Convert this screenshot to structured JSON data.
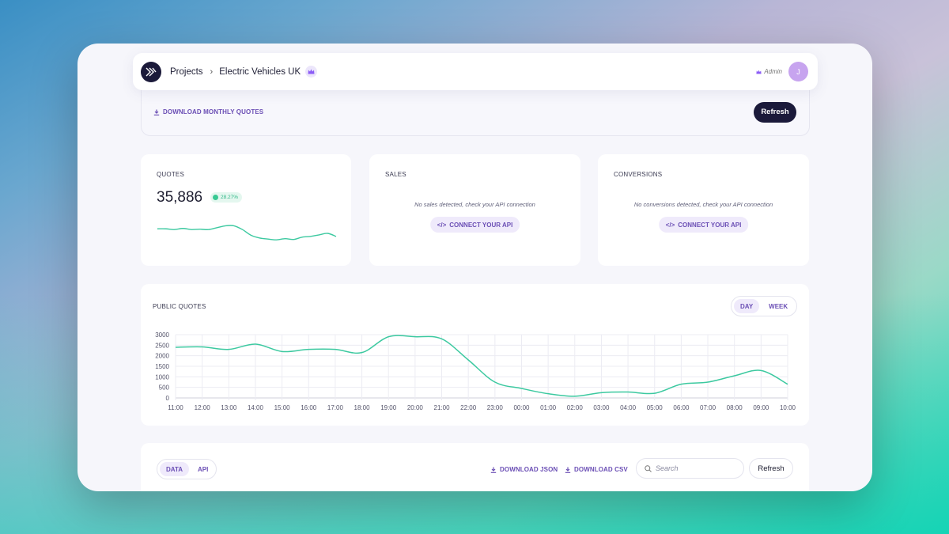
{
  "header": {
    "breadcrumb": [
      "Projects",
      "Electric Vehicles UK"
    ],
    "role": "Admin",
    "avatar_initial": "J"
  },
  "toolbar": {
    "download_monthly": "DOWNLOAD MONTHLY QUOTES",
    "refresh_label": "Refresh"
  },
  "cards": {
    "quotes": {
      "title": "QUOTES",
      "value": "35,886",
      "change": "28.27%",
      "sparkline": [
        0.62,
        0.62,
        0.6,
        0.63,
        0.6,
        0.61,
        0.6,
        0.65,
        0.7,
        0.7,
        0.6,
        0.45,
        0.38,
        0.35,
        0.33,
        0.36,
        0.34,
        0.4,
        0.42,
        0.46,
        0.5,
        0.42
      ]
    },
    "sales": {
      "title": "SALES",
      "message": "No sales detected, check your API connection",
      "action": "CONNECT YOUR API"
    },
    "conversions": {
      "title": "CONVERSIONS",
      "message": "No conversions detected, check your API connection",
      "action": "CONNECT YOUR API"
    }
  },
  "public_quotes": {
    "title": "PUBLIC QUOTES",
    "toggle": [
      "DAY",
      "WEEK"
    ],
    "active_toggle": "DAY"
  },
  "chart_data": {
    "type": "line",
    "title": "PUBLIC QUOTES",
    "x": [
      "11:00",
      "12:00",
      "13:00",
      "14:00",
      "15:00",
      "16:00",
      "17:00",
      "18:00",
      "19:00",
      "20:00",
      "21:00",
      "22:00",
      "23:00",
      "00:00",
      "01:00",
      "02:00",
      "03:00",
      "04:00",
      "05:00",
      "06:00",
      "07:00",
      "08:00",
      "09:00",
      "10:00"
    ],
    "values": [
      2400,
      2420,
      2300,
      2550,
      2200,
      2300,
      2300,
      2150,
      2900,
      2900,
      2800,
      1800,
      750,
      450,
      200,
      80,
      250,
      280,
      220,
      650,
      750,
      1050,
      1300,
      650
    ],
    "ylim": [
      0,
      3000
    ],
    "yticks": [
      0,
      500,
      1000,
      1500,
      2000,
      2500,
      3000
    ],
    "grid": true,
    "color": "#3cc9a0"
  },
  "data_section": {
    "tabs": [
      "DATA",
      "API"
    ],
    "active_tab": "DATA",
    "download_json": "DOWNLOAD JSON",
    "download_csv": "DOWNLOAD CSV",
    "search_placeholder": "Search",
    "refresh_label": "Refresh"
  },
  "colors": {
    "accent": "#6b4fb5",
    "dark": "#1b1a3a",
    "line": "#3cc9a0"
  }
}
